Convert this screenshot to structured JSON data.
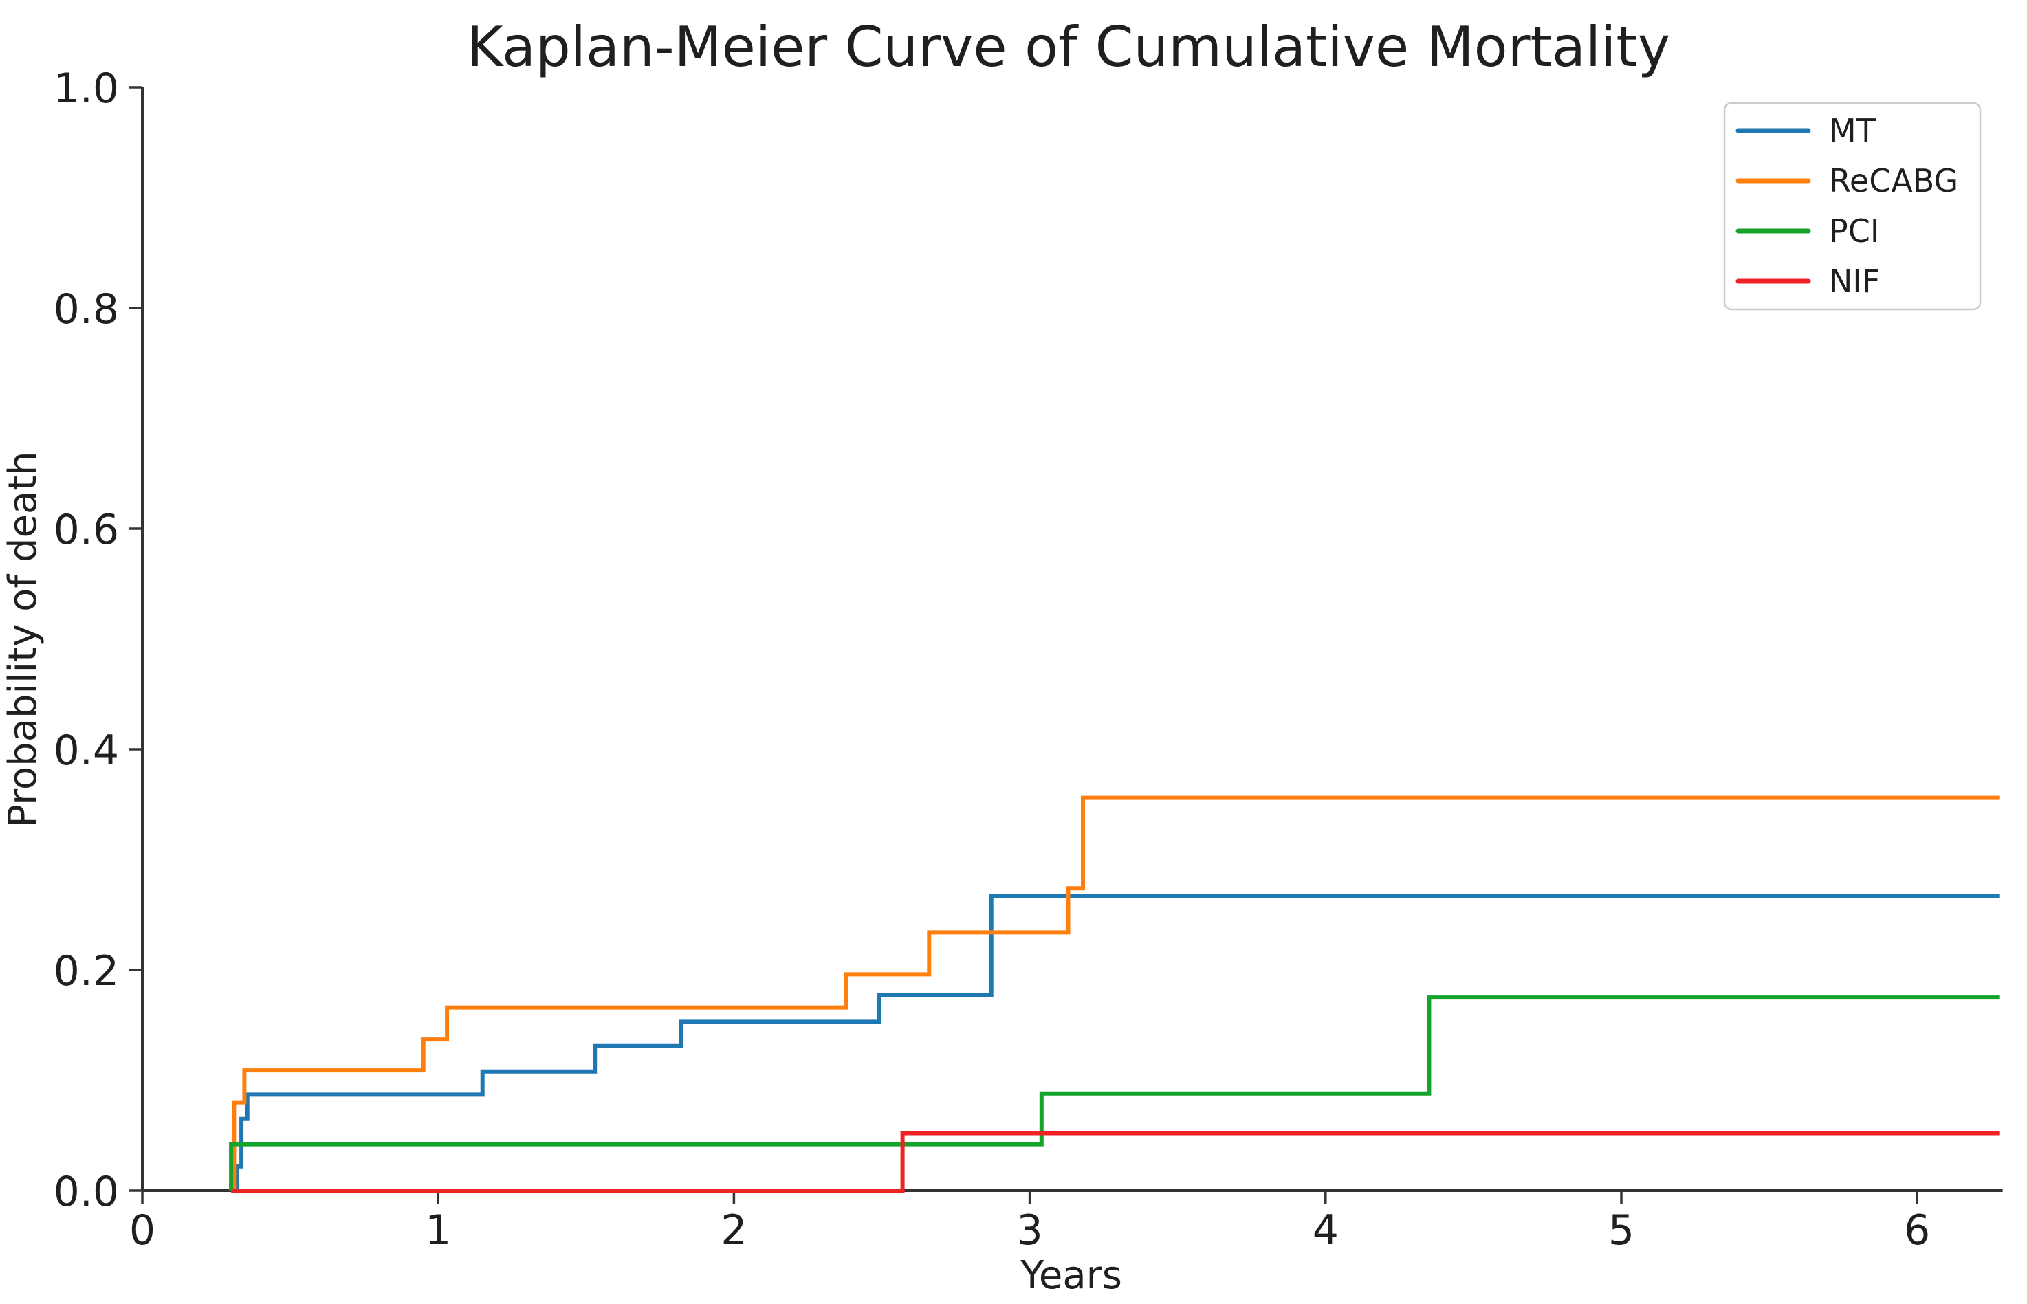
{
  "chart_data": {
    "type": "line",
    "subtype": "kaplan-meier-step",
    "step": "post",
    "title": "Kaplan-Meier Curve of Cumulative Mortality",
    "xlabel": "Years",
    "ylabel": "Probability of death",
    "xlim": [
      0,
      6.28
    ],
    "ylim": [
      0.0,
      1.0
    ],
    "grid": false,
    "legend_position": "upper right",
    "x_ticks": [
      0,
      1,
      2,
      3,
      4,
      5,
      6
    ],
    "x_tick_labels": [
      "0",
      "1",
      "2",
      "3",
      "4",
      "5",
      "6"
    ],
    "y_ticks": [
      0.0,
      0.2,
      0.4,
      0.6,
      0.8,
      1.0
    ],
    "y_tick_labels": [
      "0.0",
      "0.2",
      "0.4",
      "0.6",
      "0.8",
      "1.0"
    ],
    "series": [
      {
        "name": "MT",
        "color": "#1f77b4",
        "start_x": 0.32,
        "end_x": 6.28,
        "start_y": 0.0,
        "steps": [
          [
            0.32,
            0.022
          ],
          [
            0.335,
            0.065
          ],
          [
            0.355,
            0.087
          ],
          [
            1.15,
            0.108
          ],
          [
            1.53,
            0.131
          ],
          [
            1.82,
            0.153
          ],
          [
            2.49,
            0.177
          ],
          [
            2.87,
            0.267
          ]
        ]
      },
      {
        "name": "ReCABG",
        "color": "#ff7f0e",
        "start_x": 0.31,
        "end_x": 6.28,
        "start_y": 0.0,
        "steps": [
          [
            0.31,
            0.08
          ],
          [
            0.345,
            0.109
          ],
          [
            0.95,
            0.137
          ],
          [
            1.03,
            0.166
          ],
          [
            2.38,
            0.196
          ],
          [
            2.66,
            0.234
          ],
          [
            3.13,
            0.274
          ],
          [
            3.18,
            0.356
          ]
        ]
      },
      {
        "name": "PCI",
        "color": "#16a32c",
        "start_x": 0.3,
        "end_x": 6.28,
        "start_y": 0.0,
        "steps": [
          [
            0.3,
            0.042
          ],
          [
            3.04,
            0.088
          ],
          [
            4.35,
            0.175
          ]
        ]
      },
      {
        "name": "NIF",
        "color": "#ee2224",
        "start_x": 0.3,
        "end_x": 6.28,
        "start_y": 0.0,
        "steps": [
          [
            2.57,
            0.052
          ]
        ]
      }
    ],
    "legend_items": [
      {
        "label": "MT",
        "color": "#1f77b4"
      },
      {
        "label": "ReCABG",
        "color": "#ff7f0e"
      },
      {
        "label": "PCI",
        "color": "#16a32c"
      },
      {
        "label": "NIF",
        "color": "#ee2224"
      }
    ],
    "axis_color": "#333333",
    "background_color": "#ffffff"
  }
}
